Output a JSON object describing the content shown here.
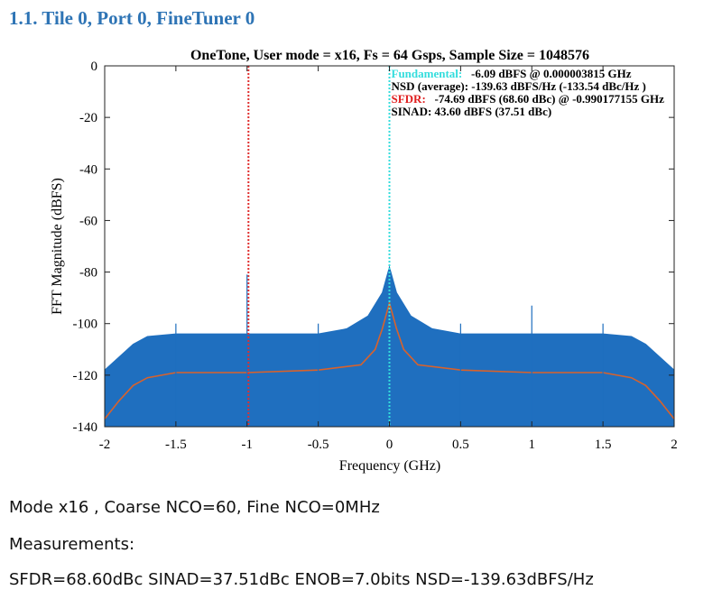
{
  "heading": "1.1. Tile 0, Port 0, FineTuner 0",
  "chart_data": {
    "type": "line",
    "title": "OneTone, User mode = x16, Fs = 64 Gsps, Sample Size = 1048576",
    "xlabel": "Frequency (GHz)",
    "ylabel": "FFT Magnitude (dBFS)",
    "xlim": [
      -2,
      2
    ],
    "ylim": [
      -140,
      0
    ],
    "xticks": [
      -2,
      -1.5,
      -1,
      -0.5,
      0,
      0.5,
      1,
      1.5,
      2
    ],
    "yticks": [
      -140,
      -120,
      -100,
      -80,
      -60,
      -40,
      -20,
      0
    ],
    "series": [
      {
        "kind": "area",
        "color": "#1f6fbf",
        "x": [
          -2,
          -1.9,
          -1.8,
          -1.7,
          -1.5,
          -1.3,
          -1,
          -0.5,
          -0.3,
          -0.15,
          -0.05,
          0,
          0.05,
          0.15,
          0.3,
          0.5,
          1,
          1.3,
          1.5,
          1.7,
          1.8,
          1.9,
          2
        ],
        "values": [
          -118,
          -113,
          -108,
          -105,
          -104,
          -104,
          -104,
          -104,
          -102,
          -97,
          -88,
          -78,
          -88,
          -97,
          -102,
          -104,
          -104,
          -104,
          -104,
          -105,
          -108,
          -113,
          -118
        ]
      },
      {
        "kind": "line",
        "color": "#d9622b",
        "x": [
          -2,
          -1.9,
          -1.8,
          -1.7,
          -1.5,
          -1,
          -0.5,
          -0.2,
          -0.1,
          -0.05,
          0,
          0.05,
          0.1,
          0.2,
          0.5,
          1,
          1.5,
          1.7,
          1.8,
          1.9,
          2
        ],
        "values": [
          -137,
          -130,
          -124,
          -121,
          -119,
          -119,
          -118,
          -116,
          -110,
          -102,
          -92,
          -102,
          -110,
          -116,
          -118,
          -119,
          -119,
          -121,
          -124,
          -130,
          -137
        ]
      },
      {
        "kind": "spikes",
        "color": "#1f6fbf",
        "x": [
          -1.5,
          -1,
          -0.5,
          0.5,
          1,
          1.5
        ],
        "values": [
          -100,
          -81,
          -100,
          -100,
          -93,
          -100
        ]
      }
    ],
    "markers": [
      {
        "x": -0.990177155,
        "color": "#e03030"
      },
      {
        "x": 3.815e-06,
        "color": "#33dddd"
      }
    ],
    "annotations": [
      {
        "label": "Fundamental:",
        "color": "#33dddd",
        "text": "-6.09 dBFS @ 0.000003815 GHz"
      },
      {
        "text": "NSD (average):    -139.63 dBFS/Hz (-133.54 dBc/Hz )"
      },
      {
        "label": "SFDR:",
        "color": "#e02020",
        "text": "-74.69 dBFS (68.60 dBc) @ -0.990177155 GHz"
      },
      {
        "text": "SINAD: 43.60 dBFS (37.51 dBc)"
      }
    ]
  },
  "paragraphs": [
    "Mode x16 , Coarse NCO=60, Fine NCO=0MHz",
    "Measurements:",
    "SFDR=68.60dBc SINAD=37.51dBc ENOB=7.0bits NSD=-139.63dBFS/Hz"
  ]
}
